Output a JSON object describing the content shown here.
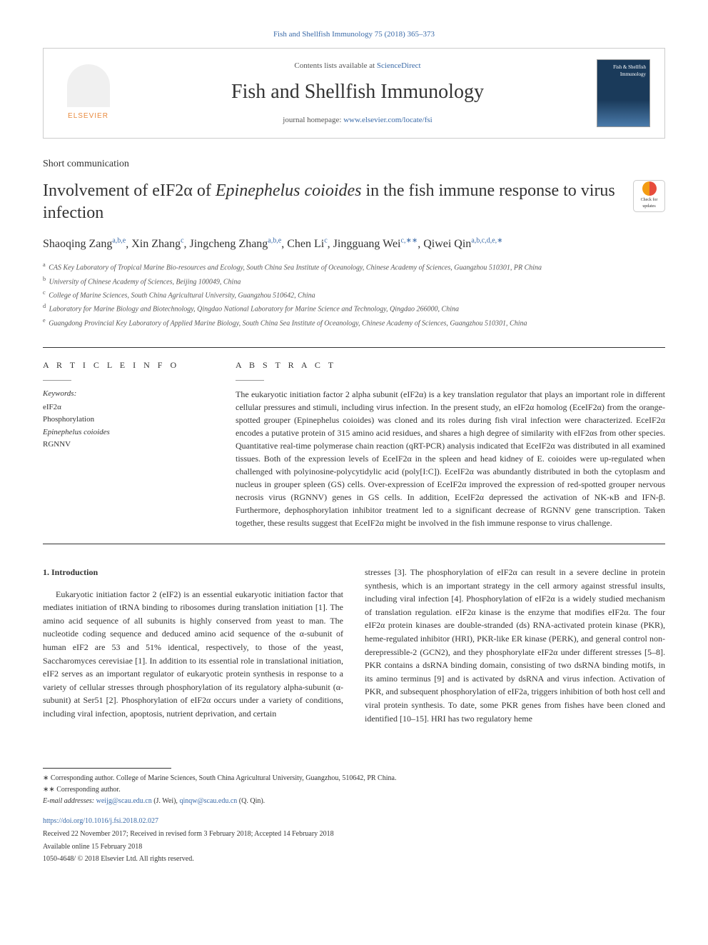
{
  "citation": "Fish and Shellfish Immunology 75 (2018) 365–373",
  "header": {
    "contents_prefix": "Contents lists available at ",
    "contents_link": "ScienceDirect",
    "journal_name": "Fish and Shellfish Immunology",
    "homepage_prefix": "journal homepage: ",
    "homepage_link": "www.elsevier.com/locate/fsi",
    "elsevier": "ELSEVIER",
    "cover_text": "Fish & Shellfish Immunology",
    "check_updates": "Check for updates"
  },
  "article_type": "Short communication",
  "title_parts": {
    "pre": "Involvement of eIF2α of ",
    "italic": "Epinephelus coioides",
    "post": " in the fish immune response to virus infection"
  },
  "authors": [
    {
      "name": "Shaoqing Zang",
      "sup": "a,b,e"
    },
    {
      "name": "Xin Zhang",
      "sup": "c"
    },
    {
      "name": "Jingcheng Zhang",
      "sup": "a,b,e"
    },
    {
      "name": "Chen Li",
      "sup": "c"
    },
    {
      "name": "Jingguang Wei",
      "sup": "c,∗∗"
    },
    {
      "name": "Qiwei Qin",
      "sup": "a,b,c,d,e,∗"
    }
  ],
  "affiliations": [
    {
      "sup": "a",
      "text": "CAS Key Laboratory of Tropical Marine Bio-resources and Ecology, South China Sea Institute of Oceanology, Chinese Academy of Sciences, Guangzhou 510301, PR China"
    },
    {
      "sup": "b",
      "text": "University of Chinese Academy of Sciences, Beijing 100049, China"
    },
    {
      "sup": "c",
      "text": "College of Marine Sciences, South China Agricultural University, Guangzhou 510642, China"
    },
    {
      "sup": "d",
      "text": "Laboratory for Marine Biology and Biotechnology, Qingdao National Laboratory for Marine Science and Technology, Qingdao 266000, China"
    },
    {
      "sup": "e",
      "text": "Guangdong Provincial Key Laboratory of Applied Marine Biology, South China Sea Institute of Oceanology, Chinese Academy of Sciences, Guangzhou 510301, China"
    }
  ],
  "article_info_heading": "A R T I C L E  I N F O",
  "abstract_heading": "A B S T R A C T",
  "keywords_label": "Keywords:",
  "keywords": [
    "eIF2α",
    "Phosphorylation",
    "Epinephelus coioides",
    "RGNNV"
  ],
  "abstract": "The eukaryotic initiation factor 2 alpha subunit (eIF2α) is a key translation regulator that plays an important role in different cellular pressures and stimuli, including virus infection. In the present study, an eIF2α homolog (EceIF2α) from the orange-spotted grouper (Epinephelus coioides) was cloned and its roles during fish viral infection were characterized. EceIF2α encodes a putative protein of 315 amino acid residues, and shares a high degree of similarity with eIF2αs from other species. Quantitative real-time polymerase chain reaction (qRT-PCR) analysis indicated that EceIF2α was distributed in all examined tissues. Both of the expression levels of EceIF2α in the spleen and head kidney of E. coioides were up-regulated when challenged with polyinosine-polycytidylic acid (poly[I:C]). EceIF2α was abundantly distributed in both the cytoplasm and nucleus in grouper spleen (GS) cells. Over-expression of EceIF2α improved the expression of red-spotted grouper nervous necrosis virus (RGNNV) genes in GS cells. In addition, EceIF2α depressed the activation of NK-κB and IFN-β. Furthermore, dephosphorylation inhibitor treatment led to a significant decrease of RGNNV gene transcription. Taken together, these results suggest that EceIF2α might be involved in the fish immune response to virus challenge.",
  "intro_heading": "1. Introduction",
  "intro_col1": "Eukaryotic initiation factor 2 (eIF2) is an essential eukaryotic initiation factor that mediates initiation of tRNA binding to ribosomes during translation initiation [1]. The amino acid sequence of all subunits is highly conserved from yeast to man. The nucleotide coding sequence and deduced amino acid sequence of the α-subunit of human eIF2 are 53 and 51% identical, respectively, to those of the yeast, Saccharomyces cerevisiae [1]. In addition to its essential role in translational initiation, eIF2 serves as an important regulator of eukaryotic protein synthesis in response to a variety of cellular stresses through phosphorylation of its regulatory alpha-subunit (α-subunit) at Ser51 [2]. Phosphorylation of eIF2α occurs under a variety of conditions, including viral infection, apoptosis, nutrient deprivation, and certain",
  "intro_col2": "stresses [3]. The phosphorylation of eIF2α can result in a severe decline in protein synthesis, which is an important strategy in the cell armory against stressful insults, including viral infection [4]. Phosphorylation of eIF2α is a widely studied mechanism of translation regulation. eIF2α kinase is the enzyme that modifies eIF2α. The four eIF2α protein kinases are double-stranded (ds) RNA-activated protein kinase (PKR), heme-regulated inhibitor (HRI), PKR-like ER kinase (PERK), and general control non-derepressible-2 (GCN2), and they phosphorylate eIF2α under different stresses [5–8]. PKR contains a dsRNA binding domain, consisting of two dsRNA binding motifs, in its amino terminus [9] and is activated by dsRNA and virus infection. Activation of PKR, and subsequent phosphorylation of eIF2a, triggers inhibition of both host cell and viral protein synthesis. To date, some PKR genes from fishes have been cloned and identified [10–15]. HRI has two regulatory heme",
  "footer": {
    "corr1": "∗ Corresponding author. College of Marine Sciences, South China Agricultural University, Guangzhou, 510642, PR China.",
    "corr2": "∗∗ Corresponding author.",
    "email_label": "E-mail addresses: ",
    "email1": "weijg@scau.edu.cn",
    "email1_name": " (J. Wei), ",
    "email2": "qinqw@scau.edu.cn",
    "email2_name": " (Q. Qin).",
    "doi": "https://doi.org/10.1016/j.fsi.2018.02.027",
    "dates": "Received 22 November 2017; Received in revised form 3 February 2018; Accepted 14 February 2018",
    "available": "Available online 15 February 2018",
    "copyright": "1050-4648/ © 2018 Elsevier Ltd. All rights reserved."
  },
  "colors": {
    "link": "#3a6aa8",
    "elsevier_orange": "#e98b3f",
    "text": "#333333",
    "border": "#cccccc"
  }
}
